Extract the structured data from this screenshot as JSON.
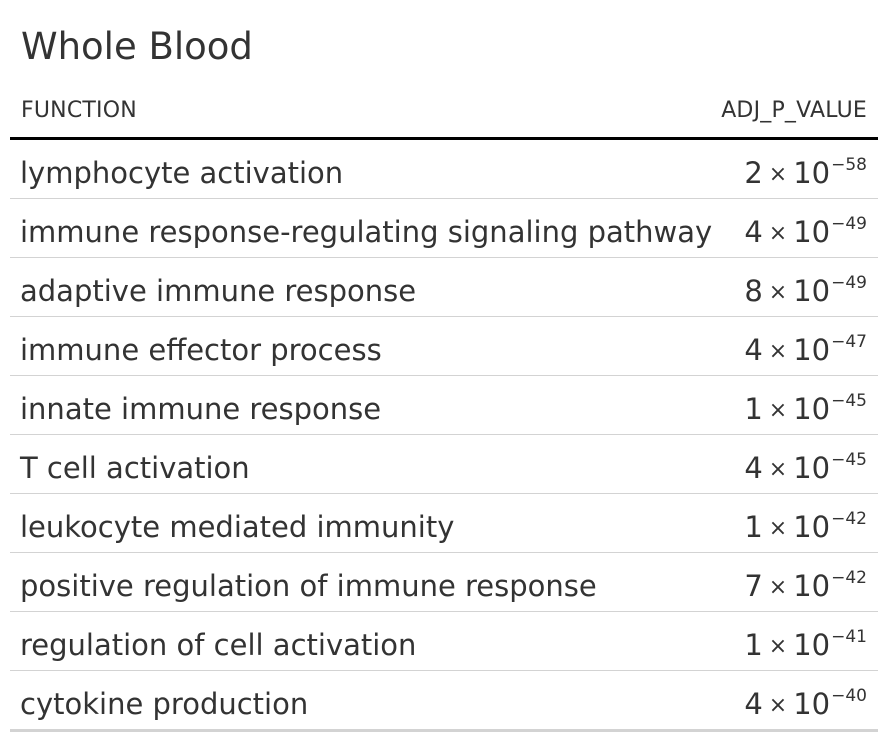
{
  "table": {
    "title": "Whole Blood",
    "columns": {
      "function": "FUNCTION",
      "adj_p_value": "ADJ_P_VALUE"
    },
    "times_symbol": "×",
    "rows": [
      {
        "function": "lymphocyte activation",
        "mantissa": "2",
        "base": "10",
        "exponent": "−58"
      },
      {
        "function": "immune response-regulating signaling pathway",
        "mantissa": "4",
        "base": "10",
        "exponent": "−49"
      },
      {
        "function": "adaptive immune response",
        "mantissa": "8",
        "base": "10",
        "exponent": "−49"
      },
      {
        "function": "immune effector process",
        "mantissa": "4",
        "base": "10",
        "exponent": "−47"
      },
      {
        "function": "innate immune response",
        "mantissa": "1",
        "base": "10",
        "exponent": "−45"
      },
      {
        "function": "T cell activation",
        "mantissa": "4",
        "base": "10",
        "exponent": "−45"
      },
      {
        "function": "leukocyte mediated immunity",
        "mantissa": "1",
        "base": "10",
        "exponent": "−42"
      },
      {
        "function": "positive regulation of immune response",
        "mantissa": "7",
        "base": "10",
        "exponent": "−42"
      },
      {
        "function": "regulation of cell activation",
        "mantissa": "1",
        "base": "10",
        "exponent": "−41"
      },
      {
        "function": "cytokine production",
        "mantissa": "4",
        "base": "10",
        "exponent": "−40"
      }
    ]
  }
}
